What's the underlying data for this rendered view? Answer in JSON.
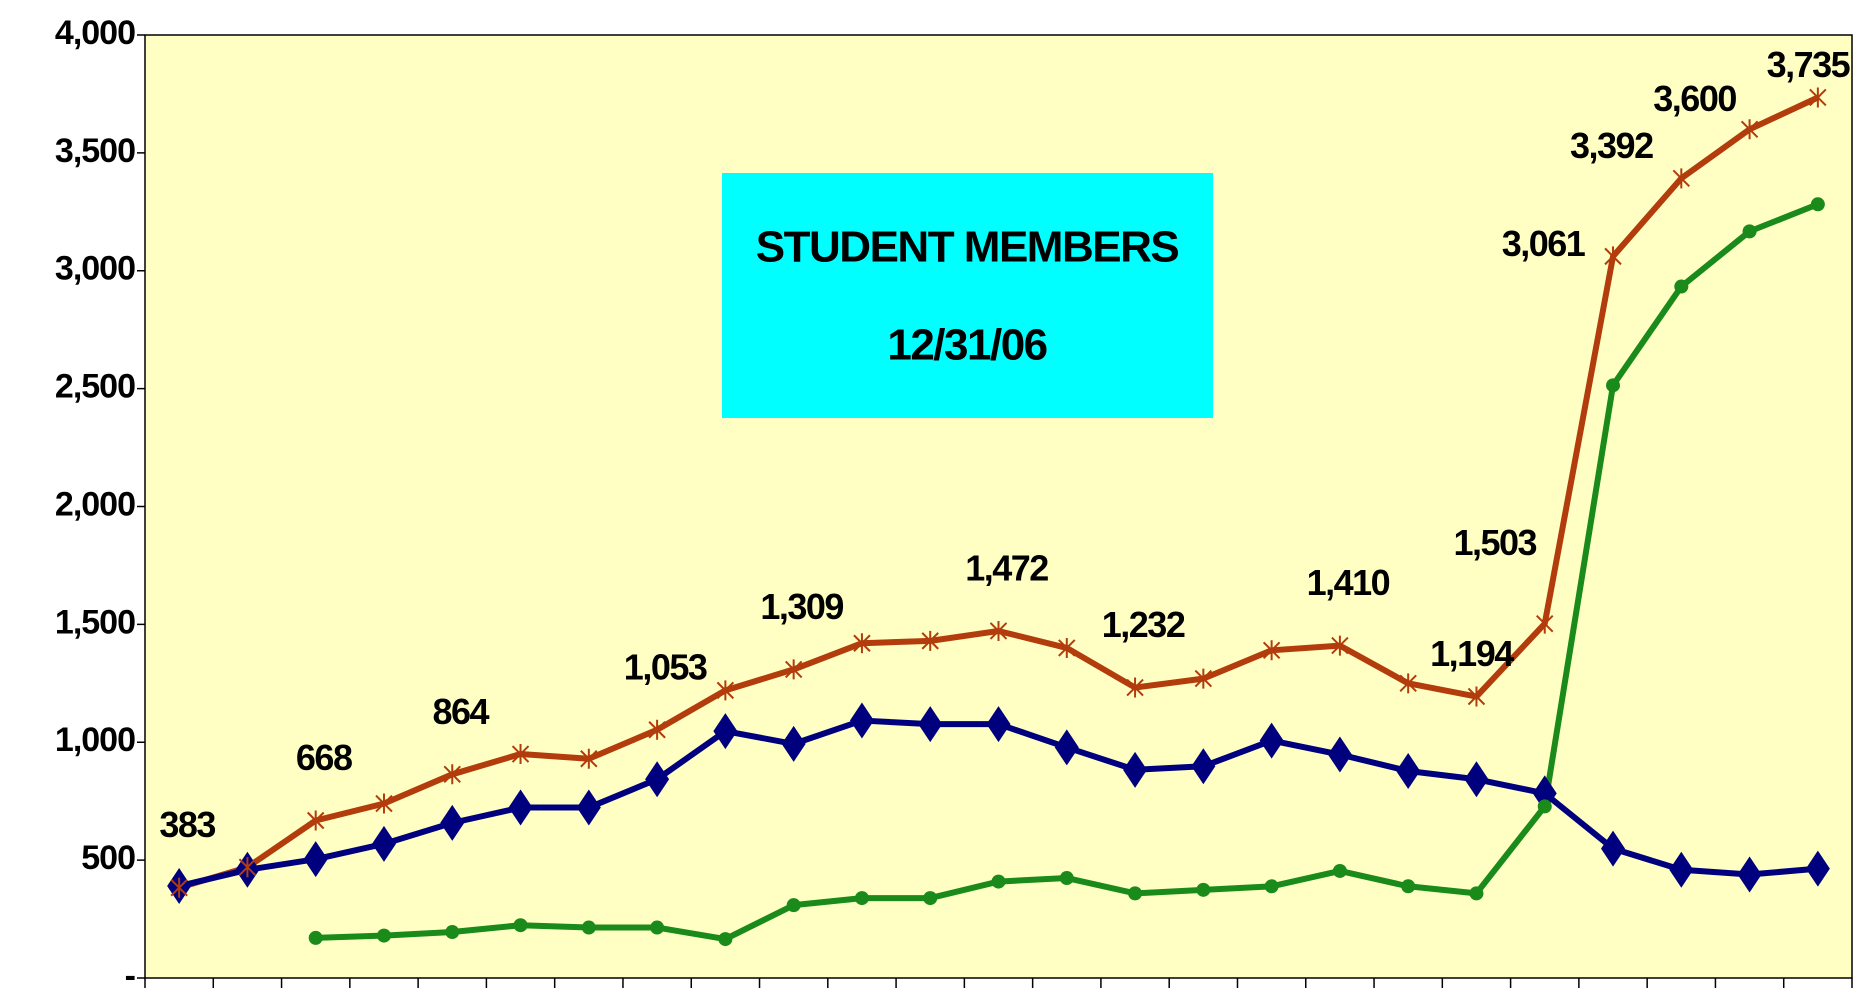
{
  "chart_data": {
    "type": "line",
    "title": "STUDENT MEMBERS",
    "subtitle": "12/31/06",
    "categories": [
      null,
      null,
      null,
      null,
      null,
      null,
      null,
      null,
      null,
      null,
      null,
      null,
      null,
      null,
      null,
      null,
      null,
      null,
      null,
      null,
      null,
      null,
      null,
      null,
      null
    ],
    "series": [
      {
        "color": "#b23c0c",
        "marker": "star",
        "values": [
          383,
          470,
          668,
          740,
          864,
          950,
          930,
          1053,
          1220,
          1309,
          1420,
          1430,
          1472,
          1400,
          1232,
          1270,
          1390,
          1410,
          1250,
          1194,
          1503,
          3061,
          3392,
          3600,
          3735
        ],
        "value_labels": [
          "383",
          null,
          "668",
          null,
          "864",
          null,
          null,
          "1,053",
          null,
          "1,309",
          null,
          null,
          "1,472",
          null,
          "1,232",
          null,
          null,
          "1,410",
          null,
          "1,194",
          "1,503",
          "3,061",
          "3,392",
          "3,600",
          "3,735"
        ]
      },
      {
        "color": "#00007f",
        "marker": "diamond",
        "values": [
          390,
          459,
          504,
          569,
          658,
          723,
          723,
          843,
          1047,
          993,
          1092,
          1077,
          1077,
          978,
          883,
          898,
          1007,
          948,
          878,
          843,
          783,
          549,
          459,
          439,
          464
        ]
      },
      {
        "color": "#1a8a1a",
        "marker": "circle",
        "values": [
          null,
          null,
          170,
          180,
          195,
          224,
          214,
          214,
          165,
          309,
          339,
          339,
          409,
          424,
          359,
          374,
          389,
          454,
          389,
          359,
          728,
          2514,
          2933,
          3167,
          3282
        ]
      }
    ],
    "ylim": [
      0,
      4000
    ],
    "yticks": [
      {
        "value": 0,
        "label": "-"
      },
      {
        "value": 500,
        "label": "500"
      },
      {
        "value": 1000,
        "label": "1,000"
      },
      {
        "value": 1500,
        "label": "1,500"
      },
      {
        "value": 2000,
        "label": "2,000"
      },
      {
        "value": 2500,
        "label": "2,500"
      },
      {
        "value": 3000,
        "label": "3,000"
      },
      {
        "value": 3500,
        "label": "3,500"
      },
      {
        "value": 4000,
        "label": "4,000"
      }
    ],
    "plot_background": "#ffffc4",
    "title_background": "#00ffff"
  }
}
